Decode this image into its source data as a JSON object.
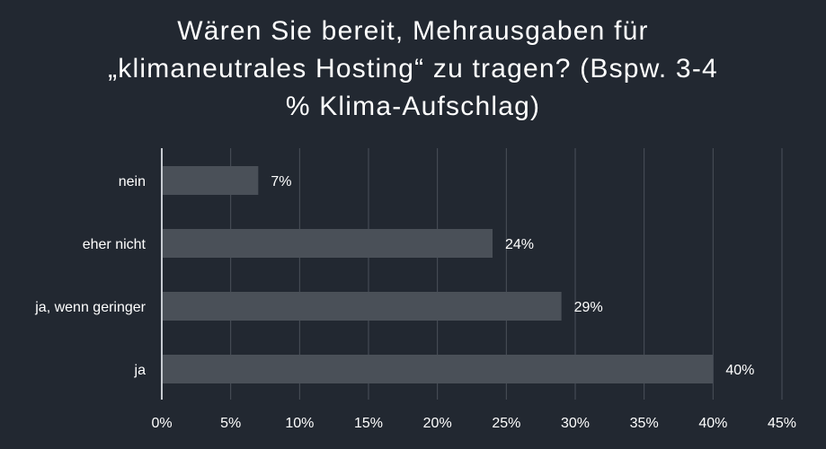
{
  "chart_data": {
    "type": "bar",
    "orientation": "horizontal",
    "title_lines": [
      "Wären Sie bereit, Mehrausgaben für",
      "„klimaneutrales Hosting“ zu tragen? (Bspw. 3-4",
      "% Klima-Aufschlag)"
    ],
    "categories": [
      "nein",
      "eher nicht",
      "ja, wenn geringer",
      "ja"
    ],
    "values": [
      7,
      24,
      29,
      40
    ],
    "value_labels": [
      "7%",
      "24%",
      "29%",
      "40%"
    ],
    "x_ticks": [
      "0%",
      "5%",
      "10%",
      "15%",
      "20%",
      "25%",
      "30%",
      "35%",
      "40%",
      "45%"
    ],
    "xlim": [
      0,
      45
    ],
    "grid": true,
    "legend": "none",
    "colors": {
      "background": "#222831",
      "bar": "#4a5058",
      "grid": "#4b515a",
      "axis": "#c8ccd2",
      "text": "#ffffff"
    }
  }
}
